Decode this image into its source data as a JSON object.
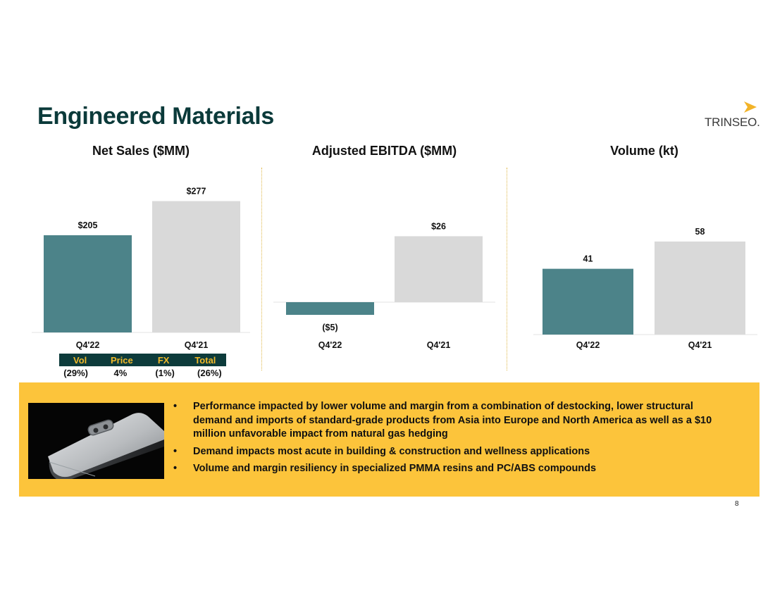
{
  "slide": {
    "title": "Engineered Materials",
    "logo_text": "TRINSEO.",
    "page_number": "8",
    "colors": {
      "title": "#0b3a3a",
      "current": "#4c8389",
      "prior": "#d9d9d9",
      "panel": "#fcc43b",
      "bridge_header": "#0d3b3b",
      "bridge_header_text": "#f0b92a",
      "logo_accent": "#f2b328"
    }
  },
  "chart_data": [
    {
      "type": "bar",
      "title": "Net Sales ($MM)",
      "categories": [
        "Q4'22",
        "Q4'21"
      ],
      "values": [
        205,
        277
      ],
      "value_labels": [
        "$205",
        "$277"
      ],
      "bar_colors": [
        "#4c8389",
        "#d9d9d9"
      ],
      "xlabel": "",
      "ylabel": "",
      "ylim": [
        0,
        300
      ],
      "grid": false,
      "bridge": {
        "headers": [
          "Vol",
          "Price",
          "FX",
          "Total"
        ],
        "values": [
          "(29%)",
          "4%",
          "(1%)",
          "(26%)"
        ]
      }
    },
    {
      "type": "bar",
      "title": "Adjusted EBITDA ($MM)",
      "categories": [
        "Q4'22",
        "Q4'21"
      ],
      "values": [
        -5,
        26
      ],
      "value_labels": [
        "($5)",
        "$26"
      ],
      "bar_colors": [
        "#4c8389",
        "#d9d9d9"
      ],
      "xlabel": "",
      "ylabel": "",
      "ylim": [
        -10,
        40
      ],
      "grid": false
    },
    {
      "type": "bar",
      "title": "Volume (kt)",
      "categories": [
        "Q4'22",
        "Q4'21"
      ],
      "values": [
        41,
        58
      ],
      "value_labels": [
        "41",
        "58"
      ],
      "bar_colors": [
        "#4c8389",
        "#d9d9d9"
      ],
      "xlabel": "",
      "ylabel": "",
      "ylim": [
        0,
        90
      ],
      "grid": false
    }
  ],
  "commentary": {
    "bullets": [
      "Performance impacted by lower volume and margin from a combination of destocking, lower structural demand and imports of standard-grade products from Asia into Europe and North America as well as a $10 million unfavorable impact from natural gas hedging",
      "Demand impacts most acute in building & construction and wellness applications",
      "Volume and margin resiliency in specialized PMMA resins and PC/ABS compounds"
    ]
  }
}
